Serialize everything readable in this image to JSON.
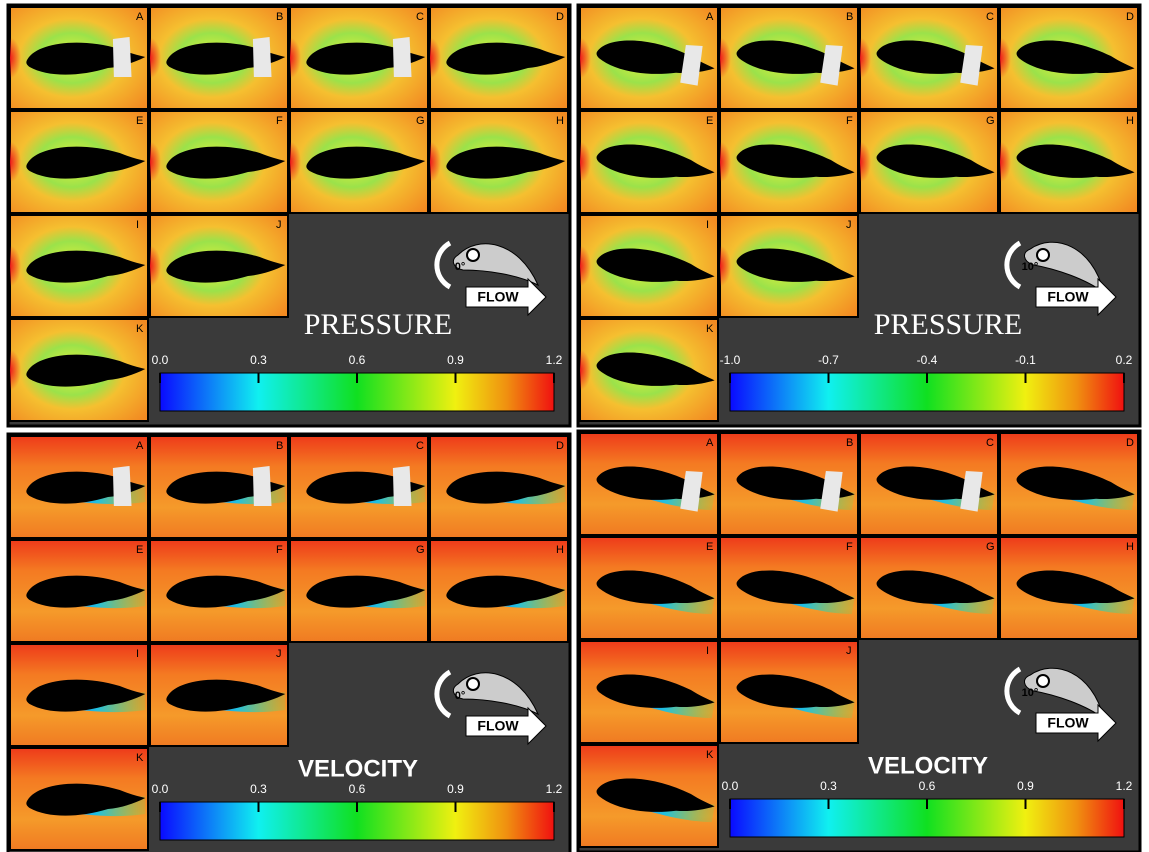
{
  "panels": [
    {
      "title": "PRESSURE",
      "angle": "0°",
      "flow": "FLOW",
      "tiles": [
        "A",
        "B",
        "C",
        "D",
        "E",
        "F",
        "G",
        "H",
        "I",
        "J",
        "K"
      ],
      "colorbar": {
        "ticks": [
          {
            "value": 0,
            "label": "0.0"
          },
          {
            "value": 0.3,
            "label": "0.3"
          },
          {
            "value": 0.6,
            "label": "0.6"
          },
          {
            "value": 0.9,
            "label": "0.9"
          },
          {
            "value": 1.2,
            "label": "1.2"
          }
        ]
      }
    },
    {
      "title": "PRESSURE",
      "angle": "10°",
      "flow": "FLOW",
      "tiles": [
        "A",
        "B",
        "C",
        "D",
        "E",
        "F",
        "G",
        "H",
        "I",
        "J",
        "K"
      ],
      "colorbar": {
        "ticks": [
          {
            "value": -1,
            "label": "-1.0"
          },
          {
            "value": -0.7,
            "label": "-0.7"
          },
          {
            "value": -0.4,
            "label": "-0.4"
          },
          {
            "value": -0.1,
            "label": "-0.1"
          },
          0.2
        ]
      }
    },
    {
      "title": "VELOCITY",
      "angle": "0°",
      "flow": "FLOW",
      "tiles": [
        "A",
        "B",
        "C",
        "D",
        "E",
        "F",
        "G",
        "H",
        "I",
        "J",
        "K"
      ],
      "colorbar": {
        "ticks": [
          {
            "value": 0,
            "label": "0.0"
          },
          {
            "value": 0.3,
            "label": "0.3"
          },
          {
            "value": 0.6,
            "label": "0.6"
          },
          {
            "value": 0.9,
            "label": "0.9"
          },
          {
            "value": 1.2,
            "label": "1.2"
          }
        ]
      }
    },
    {
      "title": "VELOCITY",
      "angle": "10°",
      "flow": "FLOW",
      "tiles": [
        "A",
        "B",
        "C",
        "D",
        "E",
        "F",
        "G",
        "H",
        "I",
        "J",
        "K"
      ],
      "colorbar": {
        "ticks": [
          {
            "value": 0,
            "label": "0.0"
          },
          {
            "value": 0.3,
            "label": "0.3"
          },
          {
            "value": 0.6,
            "label": "0.6"
          },
          {
            "value": 0.9,
            "label": "0.9"
          },
          {
            "value": 1.2,
            "label": "1.2"
          }
        ]
      }
    }
  ]
}
